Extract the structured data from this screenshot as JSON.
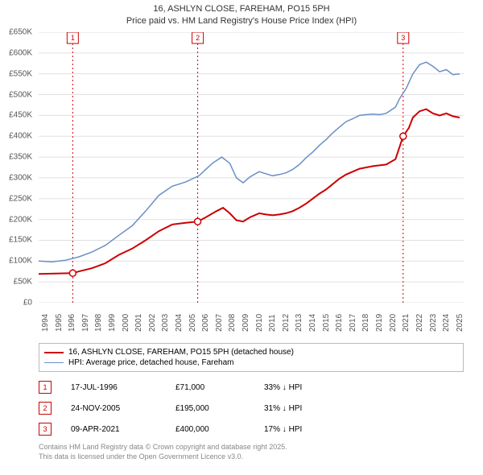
{
  "title_line1": "16, ASHLYN CLOSE, FAREHAM, PO15 5PH",
  "title_line2": "Price paid vs. HM Land Registry's House Price Index (HPI)",
  "chart": {
    "type": "line",
    "background_color": "#ffffff",
    "grid_color": "#e0e0e0",
    "axis_color": "#888888",
    "marker_vline_color": "#cc0000",
    "xlim": [
      1994,
      2025.8
    ],
    "ylim": [
      0,
      650000
    ],
    "ytick_step": 50000,
    "y_ticks": [
      "£0",
      "£50K",
      "£100K",
      "£150K",
      "£200K",
      "£250K",
      "£300K",
      "£350K",
      "£400K",
      "£450K",
      "£500K",
      "£550K",
      "£600K",
      "£650K"
    ],
    "x_ticks": [
      1994,
      1995,
      1996,
      1997,
      1998,
      1999,
      2000,
      2001,
      2002,
      2003,
      2004,
      2005,
      2006,
      2007,
      2008,
      2009,
      2010,
      2011,
      2012,
      2013,
      2014,
      2015,
      2016,
      2017,
      2018,
      2019,
      2020,
      2021,
      2022,
      2023,
      2024,
      2025
    ],
    "series": [
      {
        "name": "price_paid",
        "label": "16, ASHLYN CLOSE, FAREHAM, PO15 5PH (detached house)",
        "color": "#cc0000",
        "line_width": 2,
        "points": [
          [
            1994,
            69000
          ],
          [
            1996.55,
            71000
          ],
          [
            1997,
            75000
          ],
          [
            1998,
            83000
          ],
          [
            1999,
            95000
          ],
          [
            2000,
            115000
          ],
          [
            2001,
            130000
          ],
          [
            2002,
            150000
          ],
          [
            2003,
            172000
          ],
          [
            2004,
            188000
          ],
          [
            2005,
            192000
          ],
          [
            2005.9,
            195000
          ],
          [
            2006.5,
            205000
          ],
          [
            2007.3,
            220000
          ],
          [
            2007.8,
            228000
          ],
          [
            2008.3,
            215000
          ],
          [
            2008.8,
            198000
          ],
          [
            2009.3,
            195000
          ],
          [
            2009.8,
            205000
          ],
          [
            2010.5,
            215000
          ],
          [
            2011,
            212000
          ],
          [
            2011.5,
            210000
          ],
          [
            2012,
            212000
          ],
          [
            2012.5,
            215000
          ],
          [
            2013,
            220000
          ],
          [
            2013.5,
            228000
          ],
          [
            2014,
            238000
          ],
          [
            2014.5,
            250000
          ],
          [
            2015,
            262000
          ],
          [
            2015.5,
            272000
          ],
          [
            2016,
            285000
          ],
          [
            2016.5,
            298000
          ],
          [
            2017,
            308000
          ],
          [
            2017.5,
            315000
          ],
          [
            2018,
            322000
          ],
          [
            2018.5,
            325000
          ],
          [
            2019,
            328000
          ],
          [
            2019.5,
            330000
          ],
          [
            2020,
            332000
          ],
          [
            2020.7,
            345000
          ],
          [
            2021.27,
            400000
          ],
          [
            2021.7,
            420000
          ],
          [
            2022,
            445000
          ],
          [
            2022.5,
            460000
          ],
          [
            2023,
            465000
          ],
          [
            2023.5,
            455000
          ],
          [
            2024,
            450000
          ],
          [
            2024.5,
            455000
          ],
          [
            2025,
            448000
          ],
          [
            2025.5,
            445000
          ]
        ]
      },
      {
        "name": "hpi",
        "label": "HPI: Average price, detached house, Fareham",
        "color": "#6a8fc5",
        "line_width": 1.5,
        "points": [
          [
            1994,
            100000
          ],
          [
            1995,
            98000
          ],
          [
            1996,
            102000
          ],
          [
            1997,
            110000
          ],
          [
            1998,
            122000
          ],
          [
            1999,
            138000
          ],
          [
            2000,
            162000
          ],
          [
            2001,
            185000
          ],
          [
            2002,
            220000
          ],
          [
            2003,
            258000
          ],
          [
            2004,
            280000
          ],
          [
            2005,
            290000
          ],
          [
            2006,
            305000
          ],
          [
            2007,
            335000
          ],
          [
            2007.7,
            350000
          ],
          [
            2008.3,
            335000
          ],
          [
            2008.8,
            300000
          ],
          [
            2009.3,
            288000
          ],
          [
            2009.8,
            302000
          ],
          [
            2010.5,
            315000
          ],
          [
            2011,
            310000
          ],
          [
            2011.5,
            305000
          ],
          [
            2012,
            308000
          ],
          [
            2012.5,
            312000
          ],
          [
            2013,
            320000
          ],
          [
            2013.5,
            332000
          ],
          [
            2014,
            348000
          ],
          [
            2014.5,
            362000
          ],
          [
            2015,
            378000
          ],
          [
            2015.5,
            392000
          ],
          [
            2016,
            408000
          ],
          [
            2016.5,
            422000
          ],
          [
            2017,
            435000
          ],
          [
            2017.5,
            442000
          ],
          [
            2018,
            450000
          ],
          [
            2018.5,
            452000
          ],
          [
            2019,
            453000
          ],
          [
            2019.5,
            452000
          ],
          [
            2020,
            455000
          ],
          [
            2020.7,
            470000
          ],
          [
            2021,
            490000
          ],
          [
            2021.5,
            515000
          ],
          [
            2022,
            550000
          ],
          [
            2022.5,
            572000
          ],
          [
            2023,
            578000
          ],
          [
            2023.5,
            568000
          ],
          [
            2024,
            555000
          ],
          [
            2024.5,
            560000
          ],
          [
            2025,
            548000
          ],
          [
            2025.5,
            550000
          ]
        ]
      }
    ],
    "event_markers": [
      {
        "n": "1",
        "x": 1996.55,
        "y": 71000,
        "date": "17-JUL-1996",
        "price": "£71,000",
        "diff": "33% ↓ HPI"
      },
      {
        "n": "2",
        "x": 2005.9,
        "y": 195000,
        "date": "24-NOV-2005",
        "price": "£195,000",
        "diff": "31% ↓ HPI"
      },
      {
        "n": "3",
        "x": 2021.27,
        "y": 400000,
        "date": "09-APR-2021",
        "price": "£400,000",
        "diff": "17% ↓ HPI"
      }
    ]
  },
  "footer_line1": "Contains HM Land Registry data © Crown copyright and database right 2025.",
  "footer_line2": "This data is licensed under the Open Government Licence v3.0."
}
